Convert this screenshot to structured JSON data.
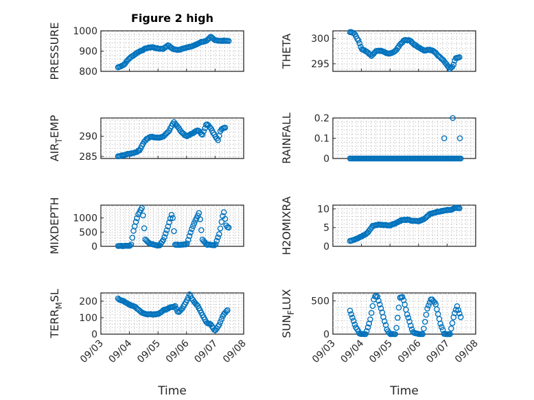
{
  "figure": {
    "title": "Figure 2 high",
    "xlabel": "Time",
    "x_ticks": [
      "09/03",
      "09/04",
      "09/05",
      "09/06",
      "09/07",
      "09/08"
    ],
    "marker_color": "#0072BD",
    "marker": "open-circle"
  },
  "chart_data": [
    {
      "type": "scatter",
      "ylabel": "PRESSURE",
      "title": "Figure 2 high",
      "xlim": [
        "09/03",
        "09/08"
      ],
      "ylim": [
        800,
        1000
      ],
      "y_ticks": [
        800,
        900,
        1000
      ],
      "grid": true,
      "anchors": [
        [
          3.6,
          820
        ],
        [
          3.8,
          832
        ],
        [
          4.0,
          865
        ],
        [
          4.3,
          895
        ],
        [
          4.6,
          915
        ],
        [
          4.8,
          920
        ],
        [
          5.0,
          912
        ],
        [
          5.2,
          912
        ],
        [
          5.35,
          930
        ],
        [
          5.5,
          912
        ],
        [
          5.7,
          905
        ],
        [
          5.9,
          915
        ],
        [
          6.1,
          920
        ],
        [
          6.3,
          930
        ],
        [
          6.5,
          945
        ],
        [
          6.7,
          950
        ],
        [
          6.85,
          970
        ],
        [
          7.0,
          955
        ],
        [
          7.2,
          950
        ],
        [
          7.35,
          952
        ],
        [
          7.5,
          950
        ]
      ]
    },
    {
      "type": "scatter",
      "ylabel": "THETA",
      "xlim": [
        "09/03",
        "09/08"
      ],
      "ylim": [
        293.5,
        301.5
      ],
      "y_ticks": [
        295,
        300
      ],
      "grid": true,
      "anchors": [
        [
          3.6,
          301.3
        ],
        [
          3.75,
          301.0
        ],
        [
          3.9,
          299.5
        ],
        [
          4.0,
          298.0
        ],
        [
          4.2,
          297.3
        ],
        [
          4.35,
          296.6
        ],
        [
          4.5,
          297.5
        ],
        [
          4.7,
          297.6
        ],
        [
          4.9,
          297.1
        ],
        [
          5.0,
          297.0
        ],
        [
          5.2,
          297.6
        ],
        [
          5.35,
          298.8
        ],
        [
          5.5,
          299.7
        ],
        [
          5.7,
          299.6
        ],
        [
          5.85,
          298.8
        ],
        [
          6.0,
          298.3
        ],
        [
          6.2,
          297.6
        ],
        [
          6.4,
          297.8
        ],
        [
          6.55,
          297.4
        ],
        [
          6.7,
          296.5
        ],
        [
          6.85,
          295.8
        ],
        [
          7.0,
          294.7
        ],
        [
          7.1,
          294.0
        ],
        [
          7.2,
          294.5
        ],
        [
          7.3,
          296.1
        ],
        [
          7.45,
          296.3
        ]
      ]
    },
    {
      "type": "scatter",
      "ylabel": "AIR_TEMP",
      "xlim": [
        "09/03",
        "09/08"
      ],
      "ylim": [
        284.5,
        294.5
      ],
      "y_ticks": [
        285,
        290
      ],
      "grid": true,
      "anchors": [
        [
          3.6,
          285.0
        ],
        [
          3.9,
          285.5
        ],
        [
          4.2,
          286.0
        ],
        [
          4.35,
          286.5
        ],
        [
          4.5,
          288.5
        ],
        [
          4.6,
          289.3
        ],
        [
          4.75,
          289.9
        ],
        [
          5.0,
          289.6
        ],
        [
          5.2,
          290.0
        ],
        [
          5.4,
          291.5
        ],
        [
          5.55,
          293.5
        ],
        [
          5.7,
          292.3
        ],
        [
          5.85,
          290.8
        ],
        [
          6.0,
          290.0
        ],
        [
          6.2,
          290.7
        ],
        [
          6.4,
          291.5
        ],
        [
          6.55,
          290.3
        ],
        [
          6.7,
          293.1
        ],
        [
          6.85,
          292.0
        ],
        [
          7.0,
          290.0
        ],
        [
          7.1,
          289.0
        ],
        [
          7.2,
          291.7
        ],
        [
          7.35,
          292.1
        ]
      ]
    },
    {
      "type": "scatter",
      "ylabel": "RAINFALL",
      "xlim": [
        "09/03",
        "09/08"
      ],
      "ylim": [
        0,
        0.2
      ],
      "y_ticks": [
        0,
        0.1,
        0.2
      ],
      "grid": true,
      "baseline": {
        "x_range": [
          3.6,
          7.5
        ],
        "value": 0
      },
      "points": [
        [
          6.9,
          0.1
        ],
        [
          7.2,
          0.2
        ],
        [
          7.45,
          0.1
        ]
      ]
    },
    {
      "type": "scatter",
      "ylabel": "MIXDEPTH",
      "xlim": [
        "09/03",
        "09/08"
      ],
      "ylim": [
        0,
        1450
      ],
      "y_ticks": [
        0,
        500,
        1000
      ],
      "grid": true,
      "anchors": [
        [
          3.6,
          15
        ],
        [
          3.9,
          15
        ],
        [
          4.05,
          20
        ],
        [
          4.15,
          600
        ],
        [
          4.3,
          1100
        ],
        [
          4.45,
          1380
        ],
        [
          4.55,
          250
        ],
        [
          4.7,
          110
        ],
        [
          4.85,
          50
        ],
        [
          5.05,
          30
        ],
        [
          5.2,
          250
        ],
        [
          5.35,
          700
        ],
        [
          5.5,
          1200
        ],
        [
          5.6,
          60
        ],
        [
          5.8,
          60
        ],
        [
          6.0,
          60
        ],
        [
          6.2,
          650
        ],
        [
          6.35,
          1000
        ],
        [
          6.45,
          1200
        ],
        [
          6.55,
          250
        ],
        [
          6.7,
          60
        ],
        [
          6.85,
          60
        ],
        [
          7.0,
          40
        ],
        [
          7.15,
          450
        ],
        [
          7.3,
          1250
        ],
        [
          7.4,
          700
        ],
        [
          7.5,
          650
        ]
      ]
    },
    {
      "type": "scatter",
      "ylabel": "H2OMIXRA",
      "xlim": [
        "09/03",
        "09/08"
      ],
      "ylim": [
        0,
        11
      ],
      "y_ticks": [
        0,
        5,
        10
      ],
      "grid": true,
      "anchors": [
        [
          3.6,
          1.5
        ],
        [
          3.8,
          1.9
        ],
        [
          4.0,
          2.6
        ],
        [
          4.2,
          3.5
        ],
        [
          4.4,
          5.5
        ],
        [
          4.6,
          5.8
        ],
        [
          4.8,
          5.7
        ],
        [
          5.0,
          5.6
        ],
        [
          5.2,
          6.2
        ],
        [
          5.4,
          7.0
        ],
        [
          5.6,
          7.1
        ],
        [
          5.8,
          6.8
        ],
        [
          6.0,
          6.7
        ],
        [
          6.2,
          7.3
        ],
        [
          6.4,
          8.7
        ],
        [
          6.6,
          9.1
        ],
        [
          6.8,
          9.4
        ],
        [
          7.0,
          9.7
        ],
        [
          7.2,
          9.9
        ],
        [
          7.3,
          10.4
        ],
        [
          7.45,
          10.2
        ]
      ]
    },
    {
      "type": "scatter",
      "ylabel": "TERR_MSL",
      "xlim": [
        "09/03",
        "09/08"
      ],
      "ylim": [
        0,
        250
      ],
      "y_ticks": [
        0,
        100,
        200
      ],
      "grid": true,
      "anchors": [
        [
          3.6,
          215
        ],
        [
          3.8,
          200
        ],
        [
          4.0,
          180
        ],
        [
          4.2,
          165
        ],
        [
          4.4,
          135
        ],
        [
          4.6,
          120
        ],
        [
          4.8,
          120
        ],
        [
          5.0,
          122
        ],
        [
          5.2,
          145
        ],
        [
          5.4,
          160
        ],
        [
          5.6,
          170
        ],
        [
          5.7,
          130
        ],
        [
          5.85,
          155
        ],
        [
          6.0,
          200
        ],
        [
          6.1,
          240
        ],
        [
          6.25,
          200
        ],
        [
          6.4,
          170
        ],
        [
          6.55,
          120
        ],
        [
          6.7,
          70
        ],
        [
          6.85,
          60
        ],
        [
          7.0,
          20
        ],
        [
          7.15,
          60
        ],
        [
          7.3,
          120
        ],
        [
          7.45,
          150
        ]
      ]
    },
    {
      "type": "scatter",
      "ylabel": "SUN_FLUX",
      "xlim": [
        "09/03",
        "09/08"
      ],
      "ylim": [
        0,
        620
      ],
      "y_ticks": [
        0,
        500
      ],
      "grid": true,
      "anchors": [
        [
          3.6,
          350
        ],
        [
          3.8,
          110
        ],
        [
          3.95,
          0
        ],
        [
          4.15,
          0
        ],
        [
          4.3,
          200
        ],
        [
          4.45,
          560
        ],
        [
          4.55,
          580
        ],
        [
          4.7,
          360
        ],
        [
          4.9,
          60
        ],
        [
          5.0,
          0
        ],
        [
          5.2,
          0
        ],
        [
          5.35,
          550
        ],
        [
          5.45,
          560
        ],
        [
          5.6,
          300
        ],
        [
          5.8,
          30
        ],
        [
          6.0,
          0
        ],
        [
          6.15,
          0
        ],
        [
          6.3,
          380
        ],
        [
          6.45,
          540
        ],
        [
          6.6,
          450
        ],
        [
          6.75,
          180
        ],
        [
          6.9,
          0
        ],
        [
          7.1,
          0
        ],
        [
          7.25,
          300
        ],
        [
          7.35,
          420
        ],
        [
          7.5,
          220
        ]
      ]
    }
  ]
}
